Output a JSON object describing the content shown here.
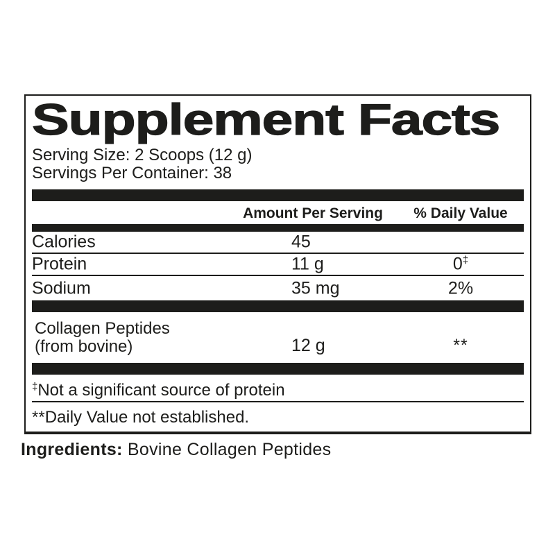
{
  "label": {
    "title": "Supplement Facts",
    "serving_size": "Serving Size: 2 Scoops (12 g)",
    "servings_per_container": "Servings Per Container: 38",
    "columns": {
      "amount": "Amount Per Serving",
      "daily_value": "% Daily Value"
    },
    "rows": [
      {
        "name": "Calories",
        "amount": "45",
        "dv": "",
        "dv_sup": ""
      },
      {
        "name": "Protein",
        "amount": "11 g",
        "dv": "0",
        "dv_sup": "‡"
      },
      {
        "name": "Sodium",
        "amount": "35 mg",
        "dv": "2%",
        "dv_sup": ""
      }
    ],
    "ingredient_rows": [
      {
        "name_line1": "Collagen Peptides",
        "name_line2": "(from bovine)",
        "amount": "12 g",
        "dv": "**"
      }
    ],
    "footnotes": [
      {
        "sup": "‡",
        "text": "Not a significant source of protein"
      },
      {
        "prefix": "**",
        "text": "Daily Value not established."
      }
    ],
    "ingredients": {
      "label": "Ingredients:",
      "value": " Bovine Collagen Peptides"
    },
    "colors": {
      "ink": "#1d1d1b",
      "background": "#ffffff"
    }
  }
}
